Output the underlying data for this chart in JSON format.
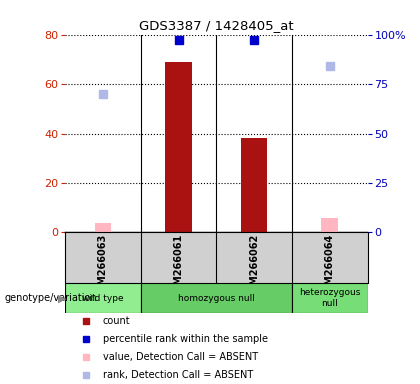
{
  "title": "GDS3387 / 1428405_at",
  "samples": [
    "GSM266063",
    "GSM266061",
    "GSM266062",
    "GSM266064"
  ],
  "bar_values": [
    0,
    69,
    38,
    0
  ],
  "absent_bar_values": [
    4,
    0,
    0,
    6
  ],
  "absent_bar_color": "#ffb6c1",
  "blue_square_values": [
    0,
    97,
    97,
    0
  ],
  "blue_square_color": "#0000cc",
  "absent_rank_values": [
    70,
    0,
    0,
    84
  ],
  "absent_rank_color": "#b0b8e8",
  "red_color": "#aa1111",
  "ylim_left": [
    0,
    80
  ],
  "ylim_right": [
    0,
    100
  ],
  "yticks_left": [
    0,
    20,
    40,
    60,
    80
  ],
  "yticks_right": [
    0,
    25,
    50,
    75,
    100
  ],
  "ytick_labels_right": [
    "0",
    "25",
    "50",
    "75",
    "100%"
  ],
  "genotype_groups": [
    {
      "label": "wild type",
      "cols": [
        0
      ],
      "color": "#90ee90"
    },
    {
      "label": "homozygous null",
      "cols": [
        1,
        2
      ],
      "color": "#66cc66"
    },
    {
      "label": "heterozygous\nnull",
      "cols": [
        3
      ],
      "color": "#77dd77"
    }
  ],
  "legend_items": [
    {
      "color": "#aa1111",
      "label": "count",
      "marker": "s"
    },
    {
      "color": "#0000cc",
      "label": "percentile rank within the sample",
      "marker": "s"
    },
    {
      "color": "#ffb6c1",
      "label": "value, Detection Call = ABSENT",
      "marker": "s"
    },
    {
      "color": "#b0b8e8",
      "label": "rank, Detection Call = ABSENT",
      "marker": "s"
    }
  ],
  "left_axis_color": "#cc2200",
  "right_axis_color": "#0000bb",
  "bar_width": 0.35,
  "absent_bar_width": 0.22,
  "sample_area_color": "#d0d0d0",
  "chart_bg": "#ffffff"
}
